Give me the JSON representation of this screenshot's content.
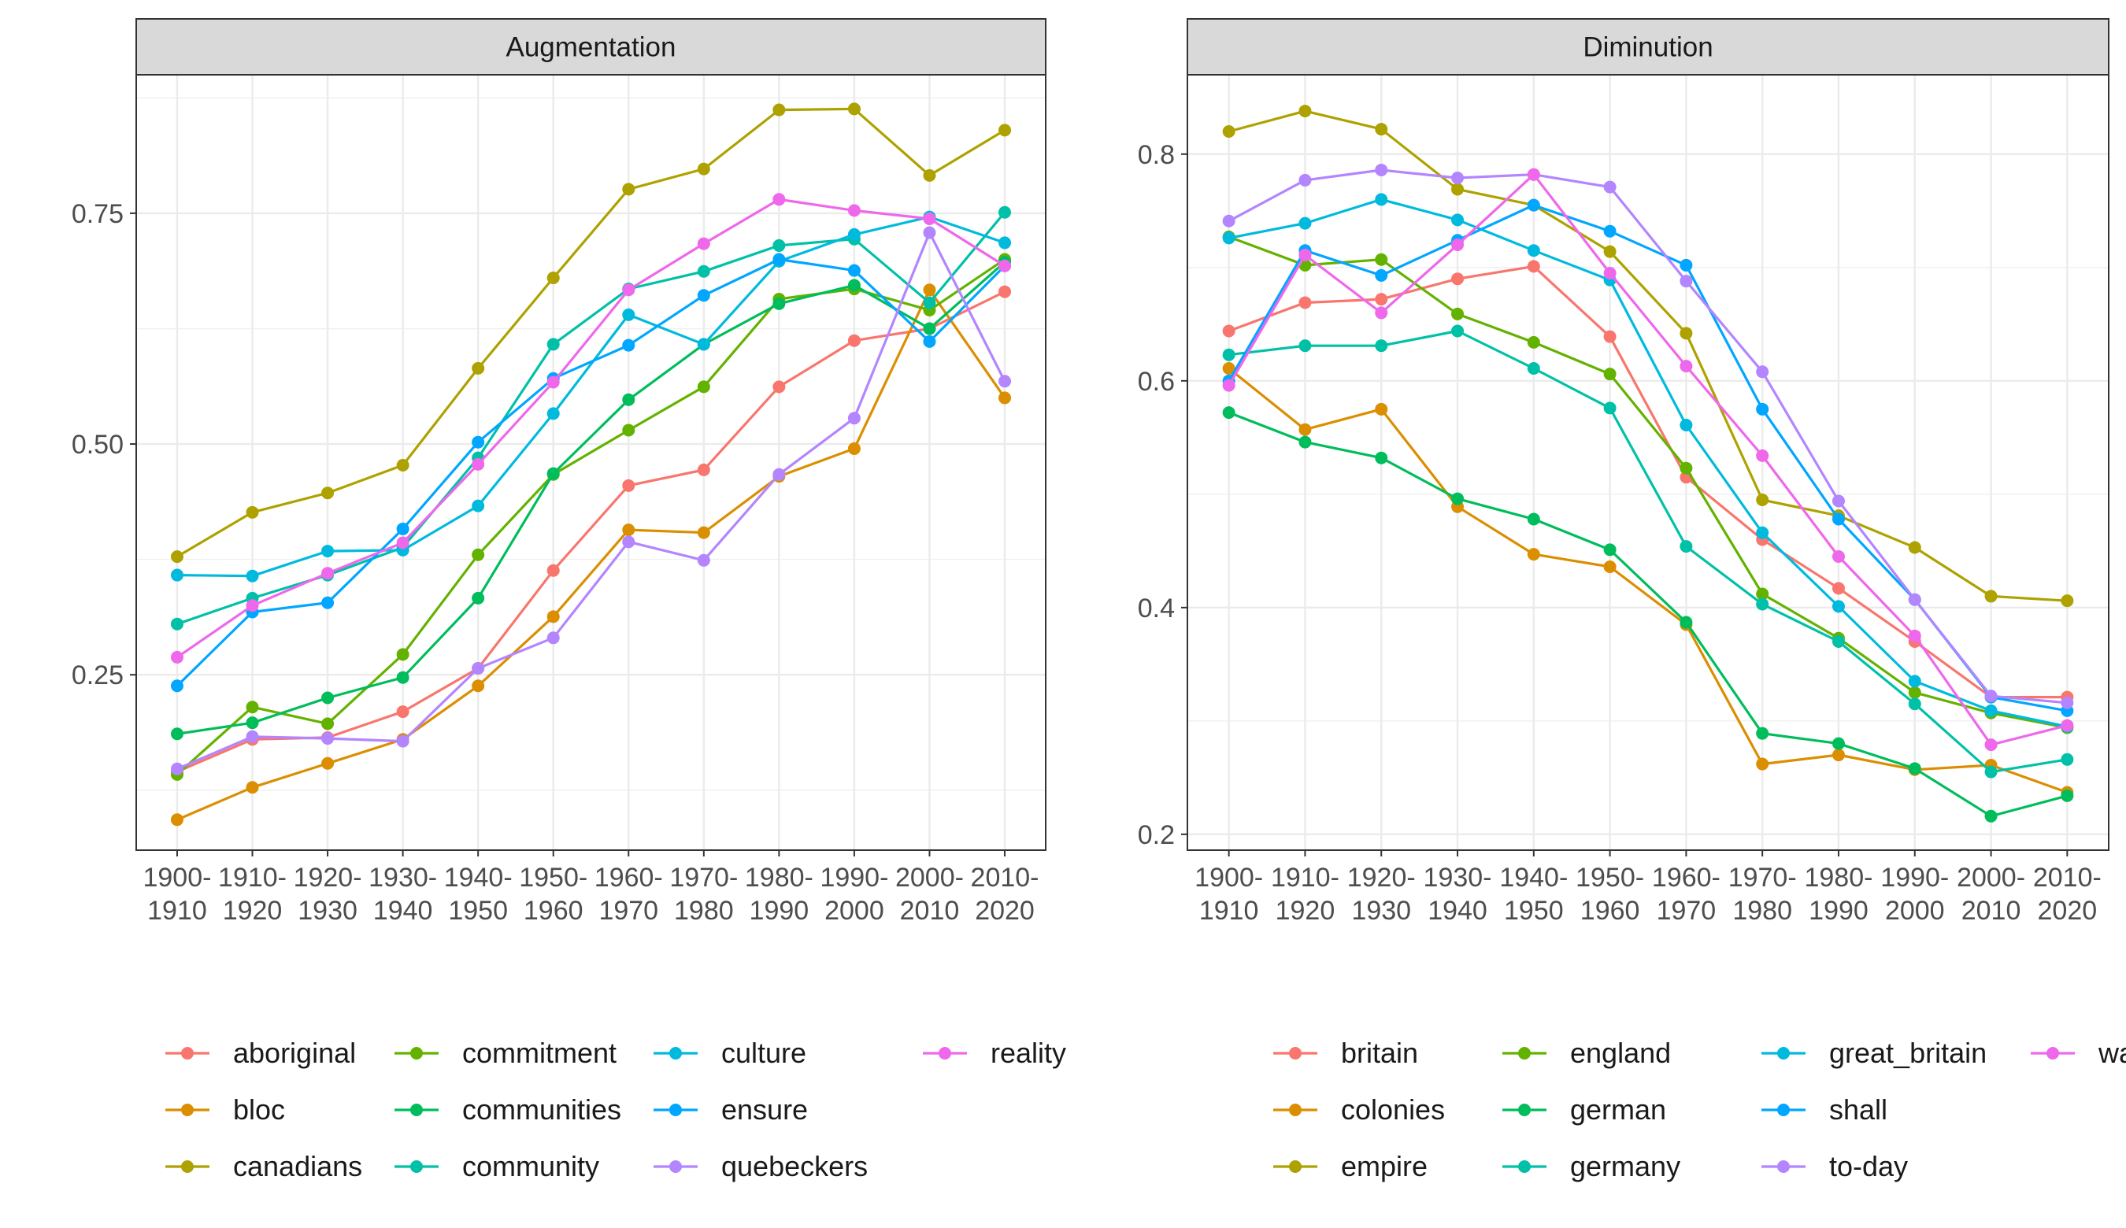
{
  "chart_data": [
    {
      "type": "line",
      "title": "Augmentation",
      "xlabel": "",
      "ylabel": "",
      "x": [
        "1900-1910",
        "1910-1920",
        "1920-1930",
        "1930-1940",
        "1940-1950",
        "1950-1960",
        "1960-1970",
        "1970-1980",
        "1980-1990",
        "1990-2000",
        "2000-2010",
        "2010-2020"
      ],
      "yticks": [
        0.25,
        0.5,
        0.75
      ],
      "ytick_labels": [
        "0.25",
        "0.50",
        "0.75"
      ],
      "ylim": [
        0.06,
        0.9
      ],
      "grid": true,
      "legend_position": "bottom",
      "series": [
        {
          "name": "aboriginal",
          "color": "#F8766D",
          "values": [
            0.145,
            0.18,
            0.182,
            0.21,
            0.257,
            0.363,
            0.455,
            0.472,
            0.562,
            0.612,
            0.625,
            0.665
          ]
        },
        {
          "name": "bloc",
          "color": "#DB8E00",
          "values": [
            0.093,
            0.128,
            0.154,
            0.18,
            0.238,
            0.313,
            0.407,
            0.404,
            0.465,
            0.495,
            0.667,
            0.55
          ]
        },
        {
          "name": "canadians",
          "color": "#AEA200",
          "values": [
            0.378,
            0.426,
            0.447,
            0.477,
            0.582,
            0.68,
            0.776,
            0.798,
            0.862,
            0.863,
            0.791,
            0.84
          ]
        },
        {
          "name": "commitment",
          "color": "#64B200",
          "values": [
            0.142,
            0.215,
            0.197,
            0.272,
            0.38,
            0.467,
            0.515,
            0.562,
            0.657,
            0.668,
            0.645,
            0.7
          ]
        },
        {
          "name": "communities",
          "color": "#00BD5C",
          "values": [
            0.186,
            0.198,
            0.225,
            0.247,
            0.333,
            0.468,
            0.548,
            0.608,
            0.652,
            0.672,
            0.625,
            0.697
          ]
        },
        {
          "name": "community",
          "color": "#00C1A7",
          "values": [
            0.305,
            0.333,
            0.358,
            0.388,
            0.485,
            0.608,
            0.668,
            0.687,
            0.715,
            0.722,
            0.653,
            0.751
          ]
        },
        {
          "name": "culture",
          "color": "#00BADE",
          "values": [
            0.358,
            0.357,
            0.384,
            0.385,
            0.433,
            0.533,
            0.64,
            0.608,
            0.698,
            0.727,
            0.746,
            0.718
          ]
        },
        {
          "name": "ensure",
          "color": "#00A6FF",
          "values": [
            0.238,
            0.318,
            0.328,
            0.408,
            0.502,
            0.571,
            0.607,
            0.661,
            0.7,
            0.688,
            0.611,
            0.693
          ]
        },
        {
          "name": "quebeckers",
          "color": "#B385FF",
          "values": [
            0.148,
            0.183,
            0.181,
            0.178,
            0.257,
            0.29,
            0.394,
            0.374,
            0.467,
            0.528,
            0.729,
            0.568
          ]
        },
        {
          "name": "reality",
          "color": "#EF67EB",
          "values": [
            0.269,
            0.325,
            0.36,
            0.393,
            0.478,
            0.567,
            0.667,
            0.717,
            0.765,
            0.753,
            0.744,
            0.693
          ]
        }
      ]
    },
    {
      "type": "line",
      "title": "Diminution",
      "xlabel": "",
      "ylabel": "",
      "x": [
        "1900-1910",
        "1910-1920",
        "1920-1930",
        "1930-1940",
        "1940-1950",
        "1950-1960",
        "1960-1970",
        "1970-1980",
        "1980-1990",
        "1990-2000",
        "2000-2010",
        "2010-2020"
      ],
      "yticks": [
        0.2,
        0.4,
        0.6,
        0.8
      ],
      "ytick_labels": [
        "0.2",
        "0.4",
        "0.6",
        "0.8"
      ],
      "ylim": [
        0.186,
        0.87
      ],
      "grid": true,
      "legend_position": "bottom",
      "series": [
        {
          "name": "britain",
          "color": "#F8766D",
          "values": [
            0.644,
            0.669,
            0.672,
            0.69,
            0.701,
            0.639,
            0.515,
            0.46,
            0.417,
            0.37,
            0.321,
            0.321
          ]
        },
        {
          "name": "colonies",
          "color": "#DB8E00",
          "values": [
            0.611,
            0.557,
            0.575,
            0.489,
            0.447,
            0.436,
            0.385,
            0.262,
            0.27,
            0.257,
            0.261,
            0.237
          ]
        },
        {
          "name": "empire",
          "color": "#AEA200",
          "values": [
            0.82,
            0.838,
            0.822,
            0.769,
            0.755,
            0.714,
            0.642,
            0.495,
            0.481,
            0.453,
            0.41,
            0.406
          ]
        },
        {
          "name": "england",
          "color": "#64B200",
          "values": [
            0.727,
            0.702,
            0.707,
            0.659,
            0.634,
            0.606,
            0.523,
            0.412,
            0.373,
            0.325,
            0.307,
            0.294
          ]
        },
        {
          "name": "german",
          "color": "#00BD5C",
          "values": [
            0.572,
            0.546,
            0.532,
            0.496,
            0.478,
            0.451,
            0.387,
            0.289,
            0.28,
            0.258,
            0.216,
            0.234
          ]
        },
        {
          "name": "germany",
          "color": "#00C1A7",
          "values": [
            0.623,
            0.631,
            0.631,
            0.644,
            0.611,
            0.576,
            0.454,
            0.403,
            0.37,
            0.315,
            0.255,
            0.266
          ]
        },
        {
          "name": "great_britain",
          "color": "#00BADE",
          "values": [
            0.726,
            0.739,
            0.76,
            0.742,
            0.715,
            0.689,
            0.561,
            0.466,
            0.401,
            0.335,
            0.309,
            0.295
          ]
        },
        {
          "name": "shall",
          "color": "#00A6FF",
          "values": [
            0.6,
            0.715,
            0.693,
            0.724,
            0.755,
            0.732,
            0.702,
            0.575,
            0.478,
            0.407,
            0.321,
            0.309
          ]
        },
        {
          "name": "to-day",
          "color": "#B385FF",
          "values": [
            0.741,
            0.777,
            0.786,
            0.779,
            0.782,
            0.771,
            0.688,
            0.608,
            0.494,
            0.407,
            0.322,
            0.316
          ]
        },
        {
          "name": "war",
          "color": "#EF67EB",
          "values": [
            0.596,
            0.711,
            0.66,
            0.72,
            0.782,
            0.695,
            0.613,
            0.534,
            0.445,
            0.375,
            0.279,
            0.296
          ]
        }
      ]
    }
  ]
}
